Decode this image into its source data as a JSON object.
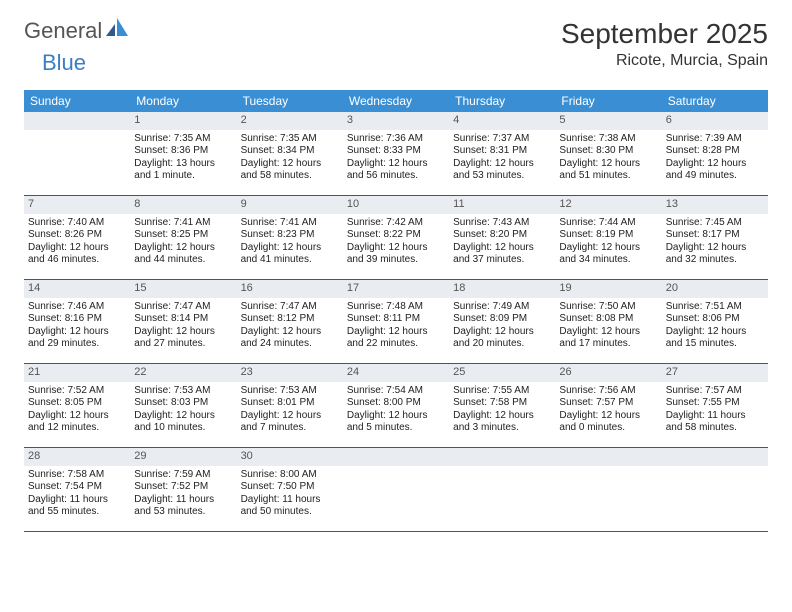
{
  "brand": {
    "general": "General",
    "blue": "Blue"
  },
  "title": "September 2025",
  "location": "Ricote, Murcia, Spain",
  "colors": {
    "header_bg": "#3a8fd4",
    "header_text": "#ffffff",
    "daynum_bg": "#e9edf1",
    "border": "#2f5a8a",
    "logo_blue": "#3a7fc4",
    "logo_gray": "#555555"
  },
  "weekdays": [
    "Sunday",
    "Monday",
    "Tuesday",
    "Wednesday",
    "Thursday",
    "Friday",
    "Saturday"
  ],
  "weeks": [
    [
      {
        "n": "",
        "sunrise": "",
        "sunset": "",
        "daylight": ""
      },
      {
        "n": "1",
        "sunrise": "Sunrise: 7:35 AM",
        "sunset": "Sunset: 8:36 PM",
        "daylight": "Daylight: 13 hours and 1 minute."
      },
      {
        "n": "2",
        "sunrise": "Sunrise: 7:35 AM",
        "sunset": "Sunset: 8:34 PM",
        "daylight": "Daylight: 12 hours and 58 minutes."
      },
      {
        "n": "3",
        "sunrise": "Sunrise: 7:36 AM",
        "sunset": "Sunset: 8:33 PM",
        "daylight": "Daylight: 12 hours and 56 minutes."
      },
      {
        "n": "4",
        "sunrise": "Sunrise: 7:37 AM",
        "sunset": "Sunset: 8:31 PM",
        "daylight": "Daylight: 12 hours and 53 minutes."
      },
      {
        "n": "5",
        "sunrise": "Sunrise: 7:38 AM",
        "sunset": "Sunset: 8:30 PM",
        "daylight": "Daylight: 12 hours and 51 minutes."
      },
      {
        "n": "6",
        "sunrise": "Sunrise: 7:39 AM",
        "sunset": "Sunset: 8:28 PM",
        "daylight": "Daylight: 12 hours and 49 minutes."
      }
    ],
    [
      {
        "n": "7",
        "sunrise": "Sunrise: 7:40 AM",
        "sunset": "Sunset: 8:26 PM",
        "daylight": "Daylight: 12 hours and 46 minutes."
      },
      {
        "n": "8",
        "sunrise": "Sunrise: 7:41 AM",
        "sunset": "Sunset: 8:25 PM",
        "daylight": "Daylight: 12 hours and 44 minutes."
      },
      {
        "n": "9",
        "sunrise": "Sunrise: 7:41 AM",
        "sunset": "Sunset: 8:23 PM",
        "daylight": "Daylight: 12 hours and 41 minutes."
      },
      {
        "n": "10",
        "sunrise": "Sunrise: 7:42 AM",
        "sunset": "Sunset: 8:22 PM",
        "daylight": "Daylight: 12 hours and 39 minutes."
      },
      {
        "n": "11",
        "sunrise": "Sunrise: 7:43 AM",
        "sunset": "Sunset: 8:20 PM",
        "daylight": "Daylight: 12 hours and 37 minutes."
      },
      {
        "n": "12",
        "sunrise": "Sunrise: 7:44 AM",
        "sunset": "Sunset: 8:19 PM",
        "daylight": "Daylight: 12 hours and 34 minutes."
      },
      {
        "n": "13",
        "sunrise": "Sunrise: 7:45 AM",
        "sunset": "Sunset: 8:17 PM",
        "daylight": "Daylight: 12 hours and 32 minutes."
      }
    ],
    [
      {
        "n": "14",
        "sunrise": "Sunrise: 7:46 AM",
        "sunset": "Sunset: 8:16 PM",
        "daylight": "Daylight: 12 hours and 29 minutes."
      },
      {
        "n": "15",
        "sunrise": "Sunrise: 7:47 AM",
        "sunset": "Sunset: 8:14 PM",
        "daylight": "Daylight: 12 hours and 27 minutes."
      },
      {
        "n": "16",
        "sunrise": "Sunrise: 7:47 AM",
        "sunset": "Sunset: 8:12 PM",
        "daylight": "Daylight: 12 hours and 24 minutes."
      },
      {
        "n": "17",
        "sunrise": "Sunrise: 7:48 AM",
        "sunset": "Sunset: 8:11 PM",
        "daylight": "Daylight: 12 hours and 22 minutes."
      },
      {
        "n": "18",
        "sunrise": "Sunrise: 7:49 AM",
        "sunset": "Sunset: 8:09 PM",
        "daylight": "Daylight: 12 hours and 20 minutes."
      },
      {
        "n": "19",
        "sunrise": "Sunrise: 7:50 AM",
        "sunset": "Sunset: 8:08 PM",
        "daylight": "Daylight: 12 hours and 17 minutes."
      },
      {
        "n": "20",
        "sunrise": "Sunrise: 7:51 AM",
        "sunset": "Sunset: 8:06 PM",
        "daylight": "Daylight: 12 hours and 15 minutes."
      }
    ],
    [
      {
        "n": "21",
        "sunrise": "Sunrise: 7:52 AM",
        "sunset": "Sunset: 8:05 PM",
        "daylight": "Daylight: 12 hours and 12 minutes."
      },
      {
        "n": "22",
        "sunrise": "Sunrise: 7:53 AM",
        "sunset": "Sunset: 8:03 PM",
        "daylight": "Daylight: 12 hours and 10 minutes."
      },
      {
        "n": "23",
        "sunrise": "Sunrise: 7:53 AM",
        "sunset": "Sunset: 8:01 PM",
        "daylight": "Daylight: 12 hours and 7 minutes."
      },
      {
        "n": "24",
        "sunrise": "Sunrise: 7:54 AM",
        "sunset": "Sunset: 8:00 PM",
        "daylight": "Daylight: 12 hours and 5 minutes."
      },
      {
        "n": "25",
        "sunrise": "Sunrise: 7:55 AM",
        "sunset": "Sunset: 7:58 PM",
        "daylight": "Daylight: 12 hours and 3 minutes."
      },
      {
        "n": "26",
        "sunrise": "Sunrise: 7:56 AM",
        "sunset": "Sunset: 7:57 PM",
        "daylight": "Daylight: 12 hours and 0 minutes."
      },
      {
        "n": "27",
        "sunrise": "Sunrise: 7:57 AM",
        "sunset": "Sunset: 7:55 PM",
        "daylight": "Daylight: 11 hours and 58 minutes."
      }
    ],
    [
      {
        "n": "28",
        "sunrise": "Sunrise: 7:58 AM",
        "sunset": "Sunset: 7:54 PM",
        "daylight": "Daylight: 11 hours and 55 minutes."
      },
      {
        "n": "29",
        "sunrise": "Sunrise: 7:59 AM",
        "sunset": "Sunset: 7:52 PM",
        "daylight": "Daylight: 11 hours and 53 minutes."
      },
      {
        "n": "30",
        "sunrise": "Sunrise: 8:00 AM",
        "sunset": "Sunset: 7:50 PM",
        "daylight": "Daylight: 11 hours and 50 minutes."
      },
      {
        "n": "",
        "sunrise": "",
        "sunset": "",
        "daylight": ""
      },
      {
        "n": "",
        "sunrise": "",
        "sunset": "",
        "daylight": ""
      },
      {
        "n": "",
        "sunrise": "",
        "sunset": "",
        "daylight": ""
      },
      {
        "n": "",
        "sunrise": "",
        "sunset": "",
        "daylight": ""
      }
    ]
  ]
}
